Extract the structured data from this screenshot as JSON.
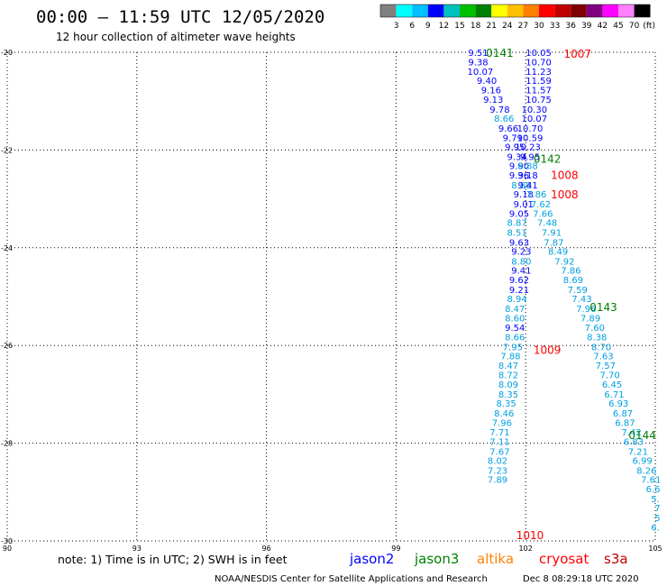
{
  "header": {
    "time_range": "00:00 – 11:59 UTC 12/05/2020",
    "subtitle": "12 hour collection of altimeter wave heights"
  },
  "legend": {
    "scale_labels": [
      "3",
      "6",
      "9",
      "12",
      "15",
      "18",
      "21",
      "24",
      "27",
      "30",
      "33",
      "36",
      "39",
      "42",
      "45",
      "70"
    ],
    "unit": "(ft)",
    "colors": [
      "#808080",
      "#00ffff",
      "#00bfff",
      "#0000ff",
      "#00c0c0",
      "#00c000",
      "#008000",
      "#ffff00",
      "#ffc000",
      "#ff8000",
      "#ff0000",
      "#c00000",
      "#800000",
      "#800080",
      "#ff00ff",
      "#ff80ff",
      "#000000"
    ]
  },
  "footer": {
    "note": "note: 1) Time is in UTC; 2) SWH is in feet",
    "satellites": [
      {
        "name": "jason2",
        "color": "#0000ff"
      },
      {
        "name": "jason3",
        "color": "#008000"
      },
      {
        "name": "altika",
        "color": "#ff8000"
      },
      {
        "name": "cryosat",
        "color": "#ff0000"
      },
      {
        "name": "s3a",
        "color": "#c00000"
      }
    ],
    "credit": "NOAA/NESDIS Center for Satellite Applications and Research",
    "timestamp": "Dec  8 08:29:18 UTC 2020"
  },
  "chart_data": {
    "type": "scatter",
    "xlim": [
      90,
      105
    ],
    "ylim": [
      -30,
      -20
    ],
    "x_ticks": [
      "90",
      "93",
      "96",
      "99",
      "102",
      "105"
    ],
    "y_ticks": [
      "-20",
      "-22",
      "-24",
      "-26",
      "-28",
      "-30"
    ],
    "grid": true,
    "time_labels": [
      {
        "text": "0141",
        "x": 101.4,
        "y": -20.0,
        "color": "#008000"
      },
      {
        "text": "1007",
        "x": 103.2,
        "y": -20.02,
        "color": "#ff0000"
      },
      {
        "text": "0142",
        "x": 102.5,
        "y": -22.17,
        "color": "#008000"
      },
      {
        "text": "1008",
        "x": 102.9,
        "y": -22.5,
        "color": "#ff0000"
      },
      {
        "text": "1008",
        "x": 102.9,
        "y": -22.9,
        "color": "#ff0000"
      },
      {
        "text": "0143",
        "x": 103.8,
        "y": -25.2,
        "color": "#008000"
      },
      {
        "text": "1009",
        "x": 102.5,
        "y": -26.08,
        "color": "#ff0000"
      },
      {
        "text": "0144",
        "x": 104.7,
        "y": -27.82,
        "color": "#008000"
      },
      {
        "text": "1010",
        "x": 102.1,
        "y": -29.87,
        "color": "#ff0000"
      }
    ],
    "series": [
      {
        "points": [
          {
            "x": 100.9,
            "y": -20.0,
            "v": "9.51",
            "c": "#0000ff"
          },
          {
            "x": 100.9,
            "y": -20.19,
            "v": "9.38",
            "c": "#0000ff"
          },
          {
            "x": 100.95,
            "y": -20.39,
            "v": "10.07",
            "c": "#0000ff"
          },
          {
            "x": 101.1,
            "y": -20.57,
            "v": "9.40",
            "c": "#0000ff"
          },
          {
            "x": 101.2,
            "y": -20.77,
            "v": "9.16",
            "c": "#0000ff"
          },
          {
            "x": 101.25,
            "y": -20.96,
            "v": "9.13",
            "c": "#0000ff"
          },
          {
            "x": 101.4,
            "y": -21.16,
            "v": "9.78",
            "c": "#0000ff"
          },
          {
            "x": 101.5,
            "y": -21.35,
            "v": "8.66",
            "c": "#00a0e0"
          },
          {
            "x": 101.6,
            "y": -21.55,
            "v": "9.66",
            "c": "#0000ff"
          },
          {
            "x": 101.7,
            "y": -21.74,
            "v": "9.79",
            "c": "#0000ff"
          },
          {
            "x": 101.75,
            "y": -21.93,
            "v": "9.95",
            "c": "#0000ff"
          },
          {
            "x": 101.8,
            "y": -22.13,
            "v": "9.34",
            "c": "#0000ff"
          },
          {
            "x": 101.85,
            "y": -22.32,
            "v": "9.90",
            "c": "#0000ff"
          },
          {
            "x": 101.85,
            "y": -22.51,
            "v": "9.36",
            "c": "#0000ff"
          },
          {
            "x": 101.9,
            "y": -22.71,
            "v": "8.88",
            "c": "#00a0e0"
          },
          {
            "x": 101.95,
            "y": -22.9,
            "v": "9.18",
            "c": "#0000ff"
          },
          {
            "x": 101.95,
            "y": -23.1,
            "v": "9.01",
            "c": "#0000ff"
          },
          {
            "x": 101.85,
            "y": -23.29,
            "v": "9.05",
            "c": "#0000ff"
          },
          {
            "x": 101.8,
            "y": -23.48,
            "v": "8.87",
            "c": "#00a0e0"
          },
          {
            "x": 101.8,
            "y": -23.68,
            "v": "8.51",
            "c": "#00a0e0"
          },
          {
            "x": 101.85,
            "y": -23.88,
            "v": "9.63",
            "c": "#0000ff"
          },
          {
            "x": 101.9,
            "y": -24.07,
            "v": "9.23",
            "c": "#0000ff"
          },
          {
            "x": 101.9,
            "y": -24.27,
            "v": "8.80",
            "c": "#00a0e0"
          },
          {
            "x": 101.9,
            "y": -24.46,
            "v": "9.41",
            "c": "#0000ff"
          },
          {
            "x": 101.85,
            "y": -24.65,
            "v": "9.62",
            "c": "#0000ff"
          },
          {
            "x": 101.85,
            "y": -24.85,
            "v": "9.21",
            "c": "#0000ff"
          },
          {
            "x": 101.8,
            "y": -25.04,
            "v": "8.94",
            "c": "#00a0e0"
          },
          {
            "x": 101.75,
            "y": -25.24,
            "v": "8.47",
            "c": "#00a0e0"
          },
          {
            "x": 101.75,
            "y": -25.43,
            "v": "8.60",
            "c": "#00a0e0"
          },
          {
            "x": 101.75,
            "y": -25.63,
            "v": "9.54",
            "c": "#0000ff"
          },
          {
            "x": 101.75,
            "y": -25.82,
            "v": "8.66",
            "c": "#00a0e0"
          },
          {
            "x": 101.7,
            "y": -26.02,
            "v": "7.95",
            "c": "#00a0e0"
          },
          {
            "x": 101.65,
            "y": -26.21,
            "v": "7.88",
            "c": "#00a0e0"
          },
          {
            "x": 101.6,
            "y": -26.4,
            "v": "8.47",
            "c": "#00a0e0"
          },
          {
            "x": 101.6,
            "y": -26.6,
            "v": "8.72",
            "c": "#00a0e0"
          },
          {
            "x": 101.6,
            "y": -26.79,
            "v": "8.09",
            "c": "#00a0e0"
          },
          {
            "x": 101.6,
            "y": -26.99,
            "v": "8.35",
            "c": "#00a0e0"
          },
          {
            "x": 101.55,
            "y": -27.18,
            "v": "8.35",
            "c": "#00a0e0"
          },
          {
            "x": 101.5,
            "y": -27.38,
            "v": "8.46",
            "c": "#00a0e0"
          },
          {
            "x": 101.45,
            "y": -27.57,
            "v": "7.96",
            "c": "#00a0e0"
          },
          {
            "x": 101.4,
            "y": -27.77,
            "v": "7.71",
            "c": "#00a0e0"
          },
          {
            "x": 101.4,
            "y": -27.96,
            "v": "7.11",
            "c": "#00a0e0"
          },
          {
            "x": 101.4,
            "y": -28.16,
            "v": "7.67",
            "c": "#00a0e0"
          },
          {
            "x": 101.35,
            "y": -28.35,
            "v": "8.02",
            "c": "#00a0e0"
          },
          {
            "x": 101.35,
            "y": -28.55,
            "v": "7.23",
            "c": "#00a0e0"
          },
          {
            "x": 101.35,
            "y": -28.74,
            "v": "7.89",
            "c": "#00a0e0"
          }
        ]
      },
      {
        "points": [
          {
            "x": 102.3,
            "y": -20.0,
            "v": "10.05",
            "c": "#0000ff"
          },
          {
            "x": 102.3,
            "y": -20.19,
            "v": "10.70",
            "c": "#0000ff"
          },
          {
            "x": 102.3,
            "y": -20.39,
            "v": "11.23",
            "c": "#0000ff"
          },
          {
            "x": 102.3,
            "y": -20.57,
            "v": "11.59",
            "c": "#0000ff"
          },
          {
            "x": 102.3,
            "y": -20.77,
            "v": "11.57",
            "c": "#0000ff"
          },
          {
            "x": 102.3,
            "y": -20.96,
            "v": "10.75",
            "c": "#0000ff"
          },
          {
            "x": 102.2,
            "y": -21.16,
            "v": "10.30",
            "c": "#0000ff"
          },
          {
            "x": 102.2,
            "y": -21.35,
            "v": "10.07",
            "c": "#0000ff"
          },
          {
            "x": 102.1,
            "y": -21.55,
            "v": "10.70",
            "c": "#0000ff"
          },
          {
            "x": 102.1,
            "y": -21.74,
            "v": "10.59",
            "c": "#0000ff"
          },
          {
            "x": 102.05,
            "y": -21.93,
            "v": "10.23",
            "c": "#0000ff"
          },
          {
            "x": 102.1,
            "y": -22.13,
            "v": "9.95",
            "c": "#0000ff"
          },
          {
            "x": 102.05,
            "y": -22.32,
            "v": "8.88",
            "c": "#00a0e0"
          },
          {
            "x": 102.05,
            "y": -22.51,
            "v": "9.18",
            "c": "#0000ff"
          },
          {
            "x": 102.05,
            "y": -22.71,
            "v": "9.41",
            "c": "#0000ff"
          },
          {
            "x": 102.25,
            "y": -22.9,
            "v": "7.86",
            "c": "#00a0e0"
          },
          {
            "x": 102.35,
            "y": -23.1,
            "v": "7.62",
            "c": "#00a0e0"
          },
          {
            "x": 102.4,
            "y": -23.29,
            "v": "7.66",
            "c": "#00a0e0"
          },
          {
            "x": 102.5,
            "y": -23.48,
            "v": "7.48",
            "c": "#00a0e0"
          },
          {
            "x": 102.6,
            "y": -23.68,
            "v": "7.91",
            "c": "#00a0e0"
          },
          {
            "x": 102.65,
            "y": -23.88,
            "v": "7.87",
            "c": "#00a0e0"
          },
          {
            "x": 102.75,
            "y": -24.07,
            "v": "8.49",
            "c": "#00a0e0"
          },
          {
            "x": 102.9,
            "y": -24.27,
            "v": "7.92",
            "c": "#00a0e0"
          },
          {
            "x": 103.05,
            "y": -24.46,
            "v": "7.86",
            "c": "#00a0e0"
          },
          {
            "x": 103.1,
            "y": -24.65,
            "v": "8.69",
            "c": "#00a0e0"
          },
          {
            "x": 103.2,
            "y": -24.85,
            "v": "7.59",
            "c": "#00a0e0"
          },
          {
            "x": 103.3,
            "y": -25.04,
            "v": "7.43",
            "c": "#00a0e0"
          },
          {
            "x": 103.4,
            "y": -25.24,
            "v": "7.96",
            "c": "#00a0e0"
          },
          {
            "x": 103.5,
            "y": -25.43,
            "v": "7.89",
            "c": "#00a0e0"
          },
          {
            "x": 103.6,
            "y": -25.63,
            "v": "7.60",
            "c": "#00a0e0"
          },
          {
            "x": 103.65,
            "y": -25.82,
            "v": "8.38",
            "c": "#00a0e0"
          },
          {
            "x": 103.75,
            "y": -26.02,
            "v": "8.70",
            "c": "#00a0e0"
          },
          {
            "x": 103.8,
            "y": -26.21,
            "v": "7.63",
            "c": "#00a0e0"
          },
          {
            "x": 103.85,
            "y": -26.4,
            "v": "7.57",
            "c": "#00a0e0"
          },
          {
            "x": 103.95,
            "y": -26.6,
            "v": "7.70",
            "c": "#00a0e0"
          },
          {
            "x": 104.0,
            "y": -26.79,
            "v": "6.45",
            "c": "#00a0e0"
          },
          {
            "x": 104.05,
            "y": -26.99,
            "v": "6.71",
            "c": "#00a0e0"
          },
          {
            "x": 104.15,
            "y": -27.18,
            "v": "6.93",
            "c": "#00a0e0"
          },
          {
            "x": 104.25,
            "y": -27.38,
            "v": "6.87",
            "c": "#00a0e0"
          },
          {
            "x": 104.3,
            "y": -27.57,
            "v": "6.87",
            "c": "#00a0e0"
          },
          {
            "x": 104.45,
            "y": -27.77,
            "v": "7.42",
            "c": "#00a0e0"
          },
          {
            "x": 104.5,
            "y": -27.96,
            "v": "6.83",
            "c": "#00a0e0"
          },
          {
            "x": 104.6,
            "y": -28.16,
            "v": "7.21",
            "c": "#00a0e0"
          },
          {
            "x": 104.7,
            "y": -28.35,
            "v": "6.99",
            "c": "#00a0e0"
          },
          {
            "x": 104.8,
            "y": -28.55,
            "v": "8.26",
            "c": "#00a0e0"
          },
          {
            "x": 104.9,
            "y": -28.74,
            "v": "7.61",
            "c": "#00a0e0"
          },
          {
            "x": 104.95,
            "y": -28.93,
            "v": "6.6",
            "c": "#00a0e0"
          },
          {
            "x": 105.0,
            "y": -29.13,
            "v": "5.",
            "c": "#00a0e0"
          },
          {
            "x": 105.05,
            "y": -29.32,
            "v": "7",
            "c": "#00a0e0"
          },
          {
            "x": 105.05,
            "y": -29.52,
            "v": "5",
            "c": "#00a0e0"
          },
          {
            "x": 105.0,
            "y": -29.71,
            "v": "6.",
            "c": "#00a0e0"
          }
        ]
      }
    ]
  }
}
